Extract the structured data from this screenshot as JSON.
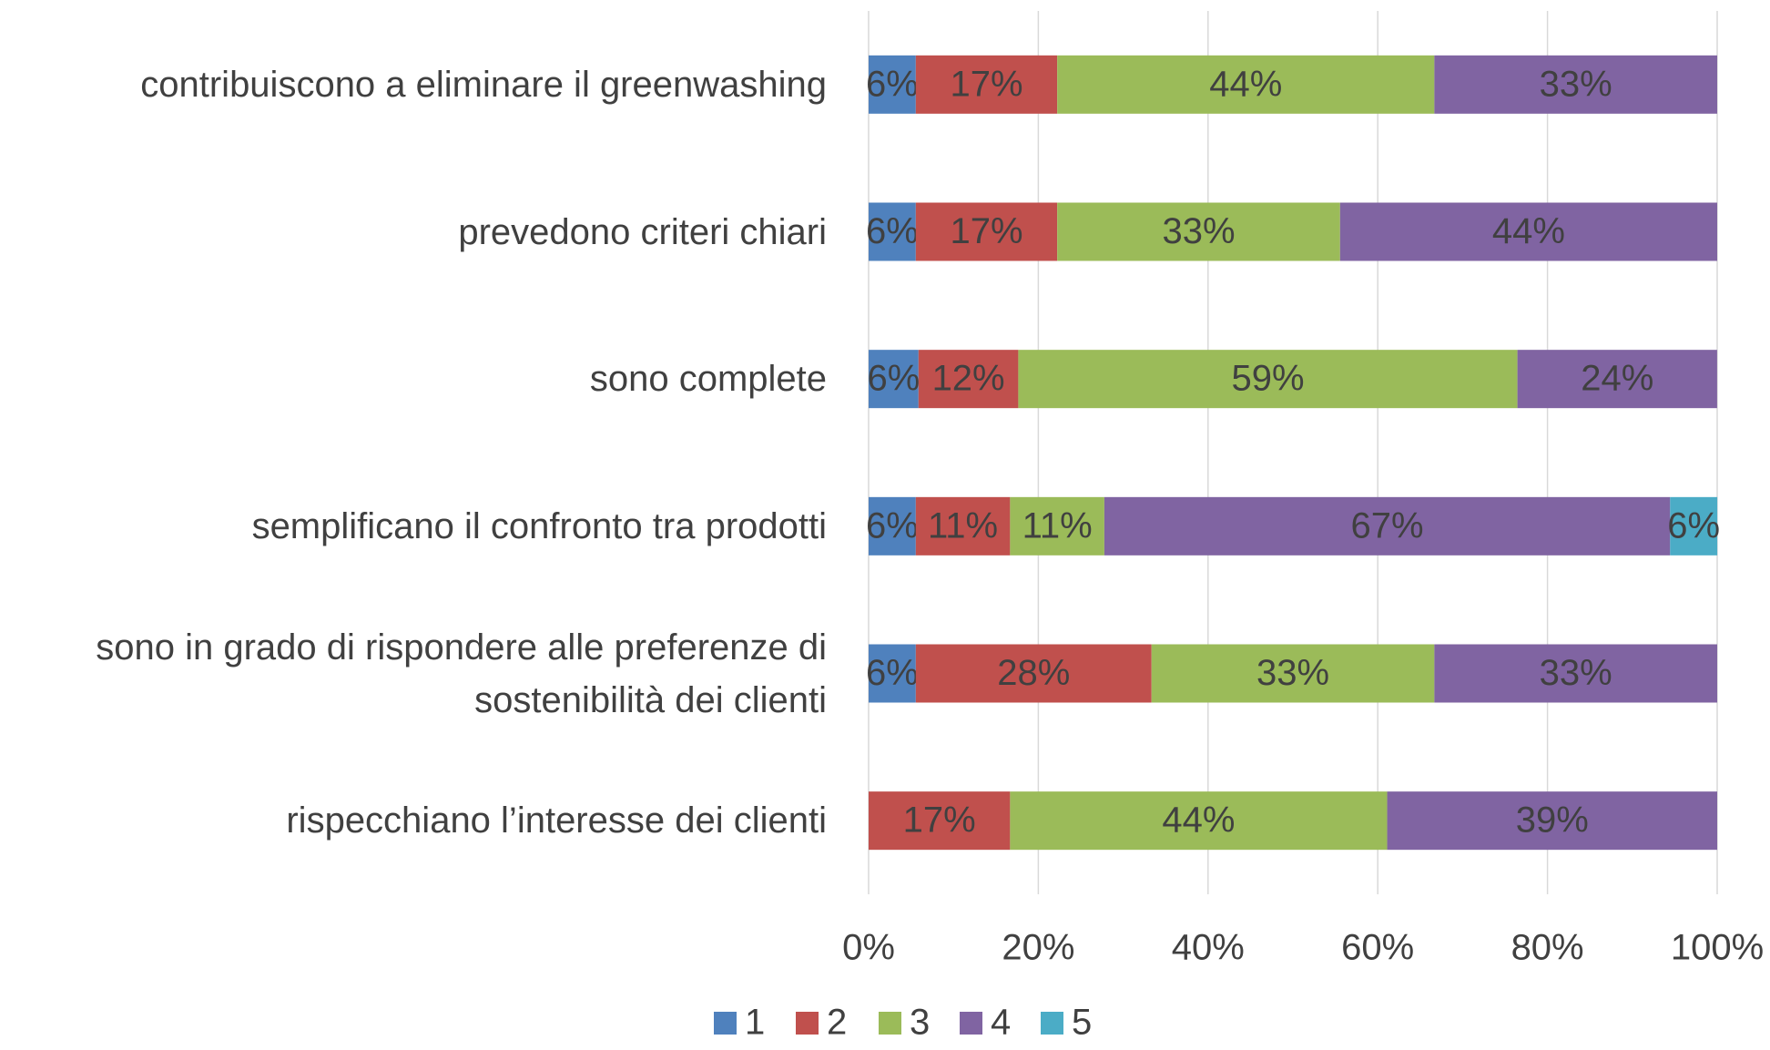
{
  "chart_data": {
    "type": "stacked_bar_horizontal",
    "categories": [
      "contribuiscono a eliminare il greenwashing",
      "prevedono criteri chiari",
      "sono complete",
      "semplificano il confronto tra prodotti",
      "sono in grado di rispondere alle preferenze di\nsostenibilità dei clienti",
      "rispecchiano l’interesse dei clienti"
    ],
    "series": [
      {
        "name": "1",
        "color": "#4f81bd",
        "values": [
          5.56,
          5.56,
          5.88,
          5.56,
          5.56,
          0
        ],
        "value_labels": [
          "6%",
          "6%",
          "6%",
          "6%",
          "6%",
          null
        ]
      },
      {
        "name": "2",
        "color": "#c0504d",
        "values": [
          16.67,
          16.67,
          11.76,
          11.11,
          27.78,
          16.67
        ],
        "value_labels": [
          "17%",
          "17%",
          "12%",
          "11%",
          "28%",
          "17%"
        ]
      },
      {
        "name": "3",
        "color": "#9bbb59",
        "values": [
          44.44,
          33.33,
          58.82,
          11.11,
          33.33,
          44.44
        ],
        "value_labels": [
          "44%",
          "33%",
          "59%",
          "11%",
          "33%",
          "44%"
        ]
      },
      {
        "name": "4",
        "color": "#8064a2",
        "values": [
          33.33,
          44.44,
          23.53,
          66.67,
          33.33,
          38.89
        ],
        "value_labels": [
          "33%",
          "44%",
          "24%",
          "67%",
          "33%",
          "39%"
        ]
      },
      {
        "name": "5",
        "color": "#4bacc6",
        "values": [
          0,
          0,
          0,
          5.56,
          0,
          0
        ],
        "value_labels": [
          null,
          null,
          null,
          "6%",
          null,
          null
        ]
      }
    ],
    "xlim": [
      0,
      100
    ],
    "xticks": [
      {
        "value": 0,
        "label": "0%"
      },
      {
        "value": 20,
        "label": "20%"
      },
      {
        "value": 40,
        "label": "40%"
      },
      {
        "value": 60,
        "label": "60%"
      },
      {
        "value": 80,
        "label": "80%"
      },
      {
        "value": 100,
        "label": "100%"
      }
    ],
    "grid": true,
    "legend": "bottom"
  }
}
